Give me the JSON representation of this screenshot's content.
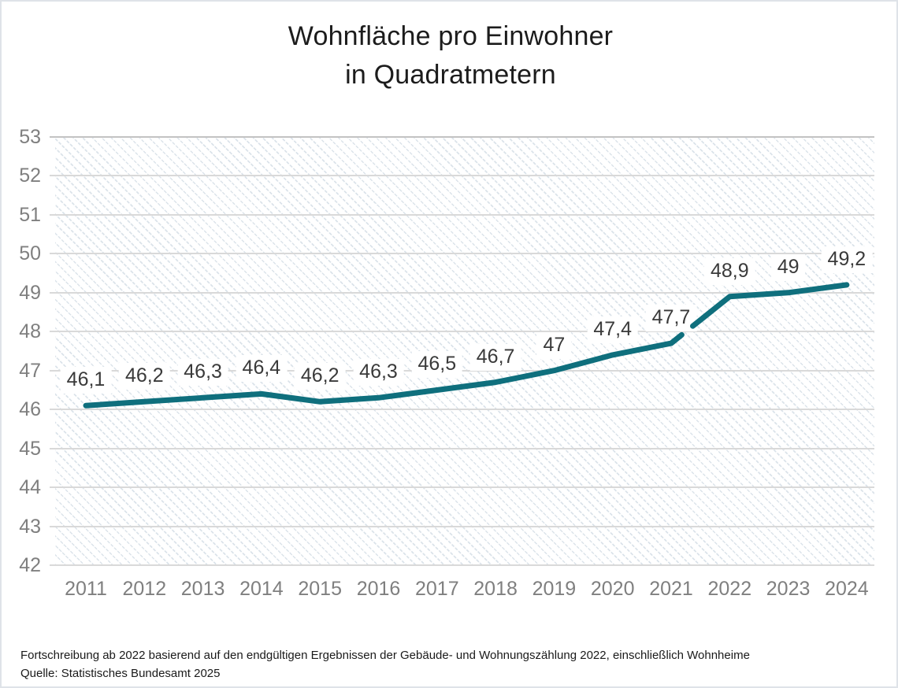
{
  "page": {
    "title_line1": "Wohnfläche pro Einwohner",
    "title_line2": "in Quadratmetern",
    "footnote_line1": "Fortschreibung ab 2022 basierend auf den endgültigen Ergebnissen der Gebäude- und Wohnungszählung 2022, einschließlich Wohnheime",
    "footnote_line2": "Quelle: Statistisches Bundesamt 2025"
  },
  "chart_data": {
    "type": "line",
    "title": "Wohnfläche pro Einwohner in Quadratmetern",
    "categories": [
      "2011",
      "2012",
      "2013",
      "2014",
      "2015",
      "2016",
      "2017",
      "2018",
      "2019",
      "2020",
      "2021",
      "2022",
      "2023",
      "2024"
    ],
    "values": [
      46.1,
      46.2,
      46.3,
      46.4,
      46.2,
      46.3,
      46.5,
      46.7,
      47,
      47.4,
      47.7,
      48.9,
      49,
      49.2
    ],
    "point_labels": [
      "46,1",
      "46,2",
      "46,3",
      "46,4",
      "46,2",
      "46,3",
      "46,5",
      "46,7",
      "47",
      "47,4",
      "47,7",
      "48,9",
      "49",
      "49,2"
    ],
    "xlabel": "",
    "ylabel": "",
    "ylim": [
      42,
      53
    ],
    "yticks": [
      42,
      43,
      44,
      45,
      46,
      47,
      48,
      49,
      50,
      51,
      52,
      53
    ],
    "grid": true,
    "legend": "none",
    "series_break": {
      "between": [
        "2021",
        "2022"
      ],
      "gap_start": 0.18,
      "gap_end": 0.37
    },
    "colors": {
      "line": "#0f6f7d",
      "grid": "#d9d9d9",
      "grid_top": "#c3c3c3",
      "axis_labels": "#7f7f7f",
      "point_labels": "#3a3a3a",
      "background_hatch": "#dbe3ea"
    }
  }
}
